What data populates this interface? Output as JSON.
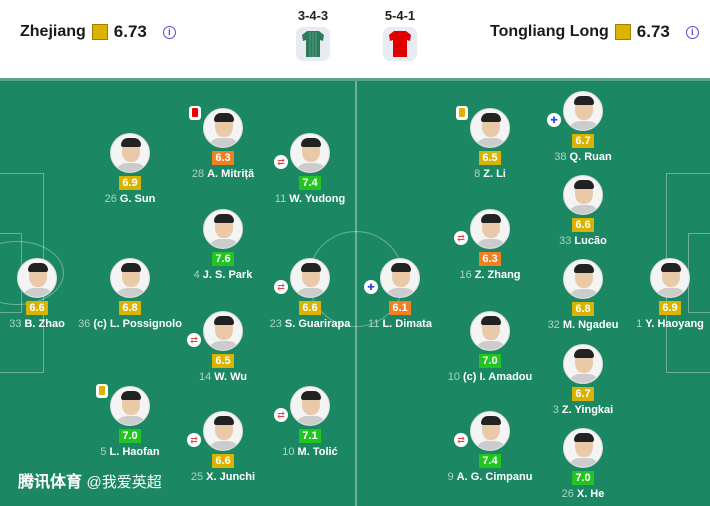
{
  "home": {
    "name": "Zhejiang",
    "rating": "6.73",
    "formation": "3-4-3",
    "kit_color": "#2f7a5c"
  },
  "away": {
    "name": "Tongliang Long",
    "rating": "6.73",
    "formation": "5-4-1",
    "kit_color": "#e00000"
  },
  "rating_colors": {
    "yellow": "#d9b300",
    "orange": "#f08020",
    "green": "#22c422"
  },
  "home_players": [
    {
      "num": "33",
      "name": "B. Zhao",
      "rating": "6.6",
      "color": "yellow"
    },
    {
      "num": "36",
      "name": "(c) L. Possignolo",
      "rating": "6.8",
      "color": "yellow"
    },
    {
      "num": "26",
      "name": "G. Sun",
      "rating": "6.9",
      "color": "yellow"
    },
    {
      "num": "5",
      "name": "L. Haofan",
      "rating": "7.0",
      "color": "green",
      "event": "yellow-card"
    },
    {
      "num": "28",
      "name": "A. Mitriță",
      "rating": "6.3",
      "color": "orange",
      "event": "red-card"
    },
    {
      "num": "4",
      "name": "J. S. Park",
      "rating": "7.6",
      "color": "green"
    },
    {
      "num": "14",
      "name": "W. Wu",
      "rating": "6.5",
      "color": "yellow",
      "event": "substitution"
    },
    {
      "num": "25",
      "name": "X. Junchi",
      "rating": "6.6",
      "color": "yellow",
      "event": "substitution"
    },
    {
      "num": "11",
      "name": "W. Yudong",
      "rating": "7.4",
      "color": "green",
      "event": "substitution"
    },
    {
      "num": "23",
      "name": "S. Guarirapa",
      "rating": "6.6",
      "color": "yellow",
      "event": "substitution"
    },
    {
      "num": "10",
      "name": "M. Tolić",
      "rating": "7.1",
      "color": "green",
      "event": "substitution"
    }
  ],
  "away_players": [
    {
      "num": "11",
      "name": "L. Dimata",
      "rating": "6.1",
      "color": "orange",
      "event": "injury-substitution"
    },
    {
      "num": "8",
      "name": "Z. Li",
      "rating": "6.5",
      "color": "yellow",
      "event": "yellow-card"
    },
    {
      "num": "16",
      "name": "Z. Zhang",
      "rating": "6.3",
      "color": "orange",
      "event": "substitution"
    },
    {
      "num": "10",
      "name": "(c) I. Amadou",
      "rating": "7.0",
      "color": "green"
    },
    {
      "num": "9",
      "name": "A. G. Cimpanu",
      "rating": "7.4",
      "color": "green",
      "event": "substitution"
    },
    {
      "num": "38",
      "name": "Q. Ruan",
      "rating": "6.7",
      "color": "yellow",
      "event": "injury-substitution"
    },
    {
      "num": "33",
      "name": "Lucão",
      "rating": "6.6",
      "color": "yellow"
    },
    {
      "num": "32",
      "name": "M. Ngadeu",
      "rating": "6.8",
      "color": "yellow"
    },
    {
      "num": "3",
      "name": "Z. Yingkai",
      "rating": "6.7",
      "color": "yellow"
    },
    {
      "num": "26",
      "name": "X. He",
      "rating": "7.0",
      "color": "green"
    },
    {
      "num": "1",
      "name": "Y. Haoyang",
      "rating": "6.9",
      "color": "yellow"
    }
  ],
  "watermark": {
    "brand": "腾讯体育",
    "handle": "@我爱英超"
  }
}
